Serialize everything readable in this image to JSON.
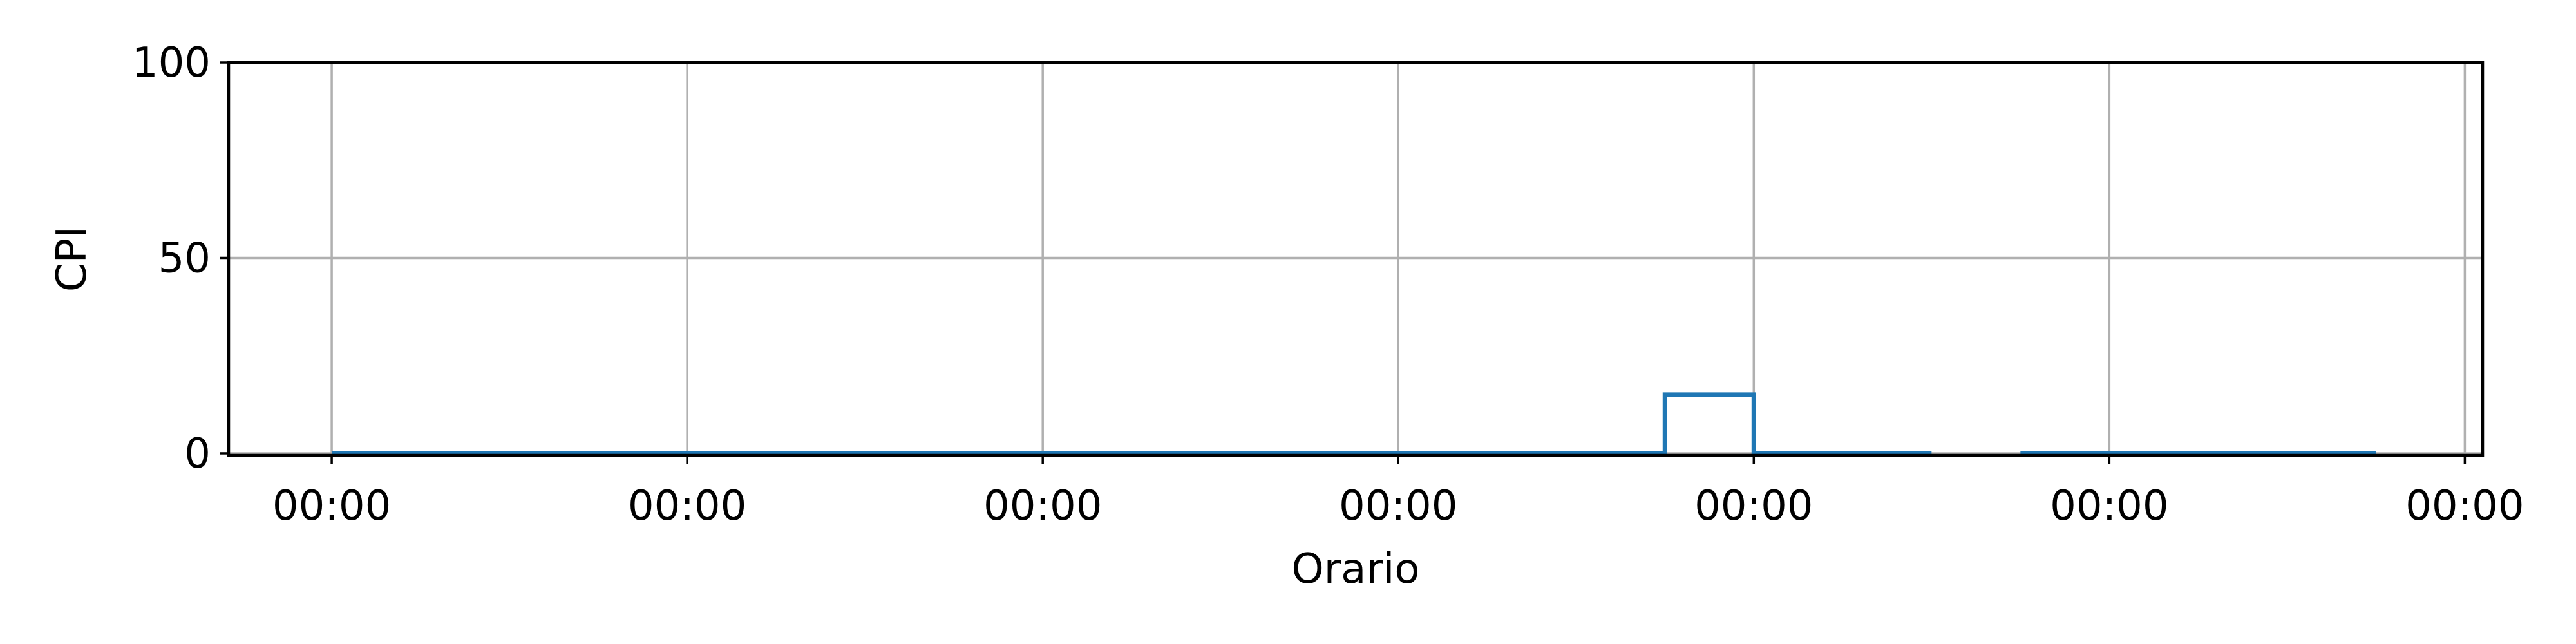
{
  "chart_data": {
    "type": "line",
    "drawstyle": "steps",
    "title": "",
    "xlabel": "Orario",
    "ylabel": "CPI",
    "xlim": [
      -0.29,
      6.05
    ],
    "ylim": [
      -0.5,
      100
    ],
    "x_ticks": [
      0,
      1,
      2,
      3,
      4,
      5,
      6
    ],
    "x_tick_labels": [
      "00:00",
      "00:00",
      "00:00",
      "00:00",
      "00:00",
      "00:00",
      "00:00"
    ],
    "y_ticks": [
      0,
      50,
      100
    ],
    "y_tick_labels": [
      "0",
      "50",
      "100"
    ],
    "grid": true,
    "legend": false,
    "series": [
      {
        "color": "#1f77b4",
        "segments": [
          {
            "x": [
              0,
              1,
              2,
              3,
              3.75,
              4,
              4.5
            ],
            "y": [
              0,
              0,
              0,
              0,
              15,
              0,
              0
            ]
          },
          {
            "x": [
              4.75,
              5,
              5.75
            ],
            "y": [
              0,
              0,
              0
            ]
          }
        ]
      }
    ]
  }
}
